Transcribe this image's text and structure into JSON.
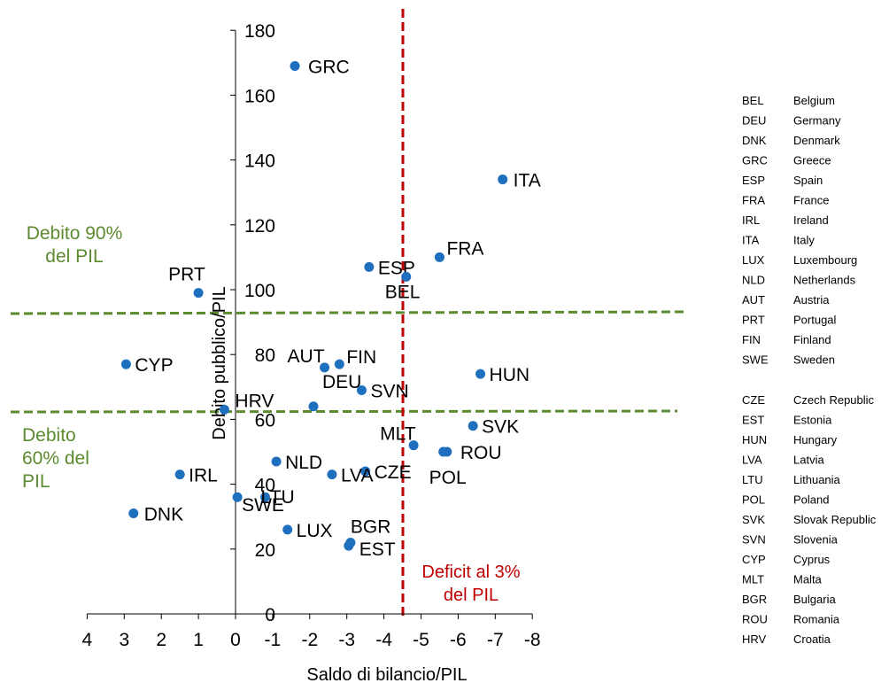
{
  "chart_data": {
    "type": "scatter",
    "xlabel": "Saldo di bilancio/PIL",
    "ylabel": "Debito pubblico/PIL",
    "xlim": [
      4,
      -8
    ],
    "ylim": [
      0,
      180
    ],
    "x_ticks": [
      "4",
      "3",
      "2",
      "1",
      "0",
      "-1",
      "-2",
      "-3",
      "-4",
      "-5",
      "-6",
      "-7",
      "-8"
    ],
    "y_ticks": [
      "0",
      "20",
      "40",
      "60",
      "80",
      "100",
      "120",
      "140",
      "160",
      "180"
    ],
    "point_color": "#1f6fbf",
    "points": [
      {
        "label": "GRC",
        "x": -1.6,
        "y": 169
      },
      {
        "label": "ITA",
        "x": -7.2,
        "y": 134
      },
      {
        "label": "FRA",
        "x": -5.5,
        "y": 110
      },
      {
        "label": "ESP",
        "x": -3.6,
        "y": 107
      },
      {
        "label": "BEL",
        "x": -4.6,
        "y": 104
      },
      {
        "label": "PRT",
        "x": 1.0,
        "y": 99
      },
      {
        "label": "CYP",
        "x": 2.95,
        "y": 77
      },
      {
        "label": "AUT",
        "x": -2.4,
        "y": 76
      },
      {
        "label": "FIN",
        "x": -2.8,
        "y": 77
      },
      {
        "label": "HUN",
        "x": -6.6,
        "y": 74
      },
      {
        "label": "SVN",
        "x": -3.4,
        "y": 69
      },
      {
        "label": "DEU",
        "x": -2.1,
        "y": 64
      },
      {
        "label": "HRV",
        "x": 0.3,
        "y": 63
      },
      {
        "label": "SVK",
        "x": -6.4,
        "y": 58
      },
      {
        "label": "MLT",
        "x": -4.8,
        "y": 52
      },
      {
        "label": "ROU",
        "x": -5.7,
        "y": 50
      },
      {
        "label": "POL",
        "x": -5.6,
        "y": 50
      },
      {
        "label": "NLD",
        "x": -1.1,
        "y": 47
      },
      {
        "label": "CZE",
        "x": -3.5,
        "y": 44
      },
      {
        "label": "LVA",
        "x": -2.6,
        "y": 43
      },
      {
        "label": "IRL",
        "x": 1.5,
        "y": 43
      },
      {
        "label": "SWE",
        "x": -0.05,
        "y": 36
      },
      {
        "label": "LTU",
        "x": -0.8,
        "y": 36
      },
      {
        "label": "DNK",
        "x": 2.75,
        "y": 31
      },
      {
        "label": "LUX",
        "x": -1.4,
        "y": 26
      },
      {
        "label": "BGR",
        "x": -3.1,
        "y": 22
      },
      {
        "label": "EST",
        "x": -3.05,
        "y": 21
      }
    ],
    "reference_lines": {
      "debt_90_label": [
        "Debito 90%",
        "del PIL"
      ],
      "debt_60_label": [
        "Debito",
        "60% del",
        "PIL"
      ],
      "deficit_label": [
        "Deficit al 3%",
        "del PIL"
      ],
      "green_color": "#5c8a2e",
      "red_color": "#c00000"
    }
  },
  "legend": {
    "group1": [
      {
        "code": "BEL",
        "name": "Belgium"
      },
      {
        "code": "DEU",
        "name": "Germany"
      },
      {
        "code": "DNK",
        "name": "Denmark"
      },
      {
        "code": "GRC",
        "name": "Greece"
      },
      {
        "code": "ESP",
        "name": "Spain"
      },
      {
        "code": "FRA",
        "name": "France"
      },
      {
        "code": "IRL",
        "name": "Ireland"
      },
      {
        "code": "ITA",
        "name": "Italy"
      },
      {
        "code": "LUX",
        "name": "Luxembourg"
      },
      {
        "code": "NLD",
        "name": "Netherlands"
      },
      {
        "code": "AUT",
        "name": "Austria"
      },
      {
        "code": "PRT",
        "name": "Portugal"
      },
      {
        "code": "FIN",
        "name": "Finland"
      },
      {
        "code": "SWE",
        "name": "Sweden"
      }
    ],
    "group2": [
      {
        "code": "CZE",
        "name": "Czech Republic"
      },
      {
        "code": "EST",
        "name": "Estonia"
      },
      {
        "code": "HUN",
        "name": "Hungary"
      },
      {
        "code": "LVA",
        "name": "Latvia"
      },
      {
        "code": "LTU",
        "name": "Lithuania"
      },
      {
        "code": "POL",
        "name": "Poland"
      },
      {
        "code": "SVK",
        "name": "Slovak Republic"
      },
      {
        "code": "SVN",
        "name": "Slovenia"
      },
      {
        "code": "CYP",
        "name": "Cyprus"
      },
      {
        "code": "MLT",
        "name": "Malta"
      },
      {
        "code": "BGR",
        "name": "Bulgaria"
      },
      {
        "code": "ROU",
        "name": "Romania"
      },
      {
        "code": "HRV",
        "name": "Croatia"
      }
    ]
  }
}
